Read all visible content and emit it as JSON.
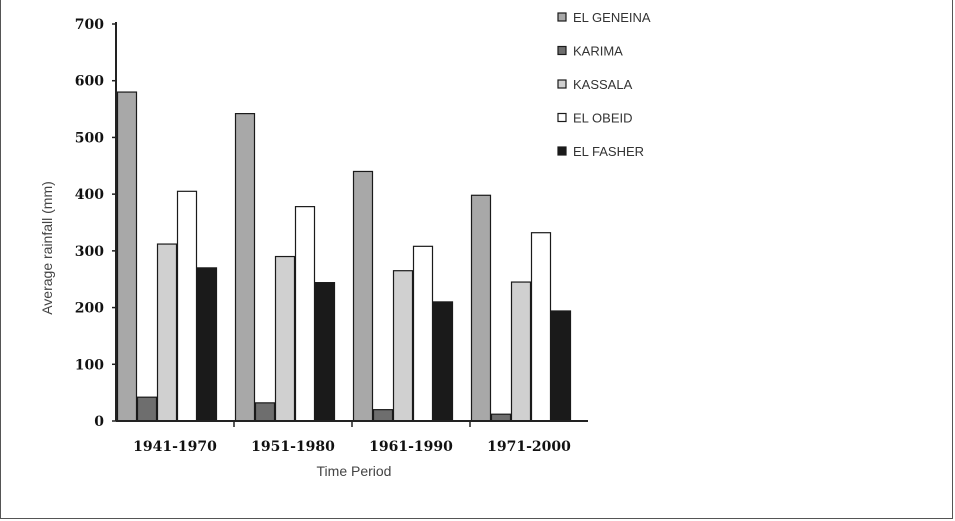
{
  "chart_data": {
    "type": "bar",
    "title": "",
    "xlabel": "Time Period",
    "ylabel": "Average rainfall (mm)",
    "ylim": [
      0,
      700
    ],
    "yticks": [
      0,
      100,
      200,
      300,
      400,
      500,
      600,
      700
    ],
    "categories": [
      "1941-1970",
      "1951-1980",
      "1961-1990",
      "1971-2000"
    ],
    "legend_position": "top-right",
    "grid": false,
    "series": [
      {
        "name": "EL GENEINA",
        "color": "#a8a8a8",
        "values": [
          580,
          542,
          440,
          398
        ]
      },
      {
        "name": "KARIMA",
        "color": "#6e6e6e",
        "values": [
          42,
          32,
          20,
          12
        ]
      },
      {
        "name": "KASSALA",
        "color": "#d0d0d0",
        "values": [
          312,
          290,
          265,
          245
        ]
      },
      {
        "name": "EL OBEID",
        "color": "#ffffff",
        "values": [
          405,
          378,
          308,
          332
        ]
      },
      {
        "name": "EL FASHER",
        "color": "#1a1a1a",
        "values": [
          270,
          244,
          210,
          194
        ]
      }
    ]
  }
}
